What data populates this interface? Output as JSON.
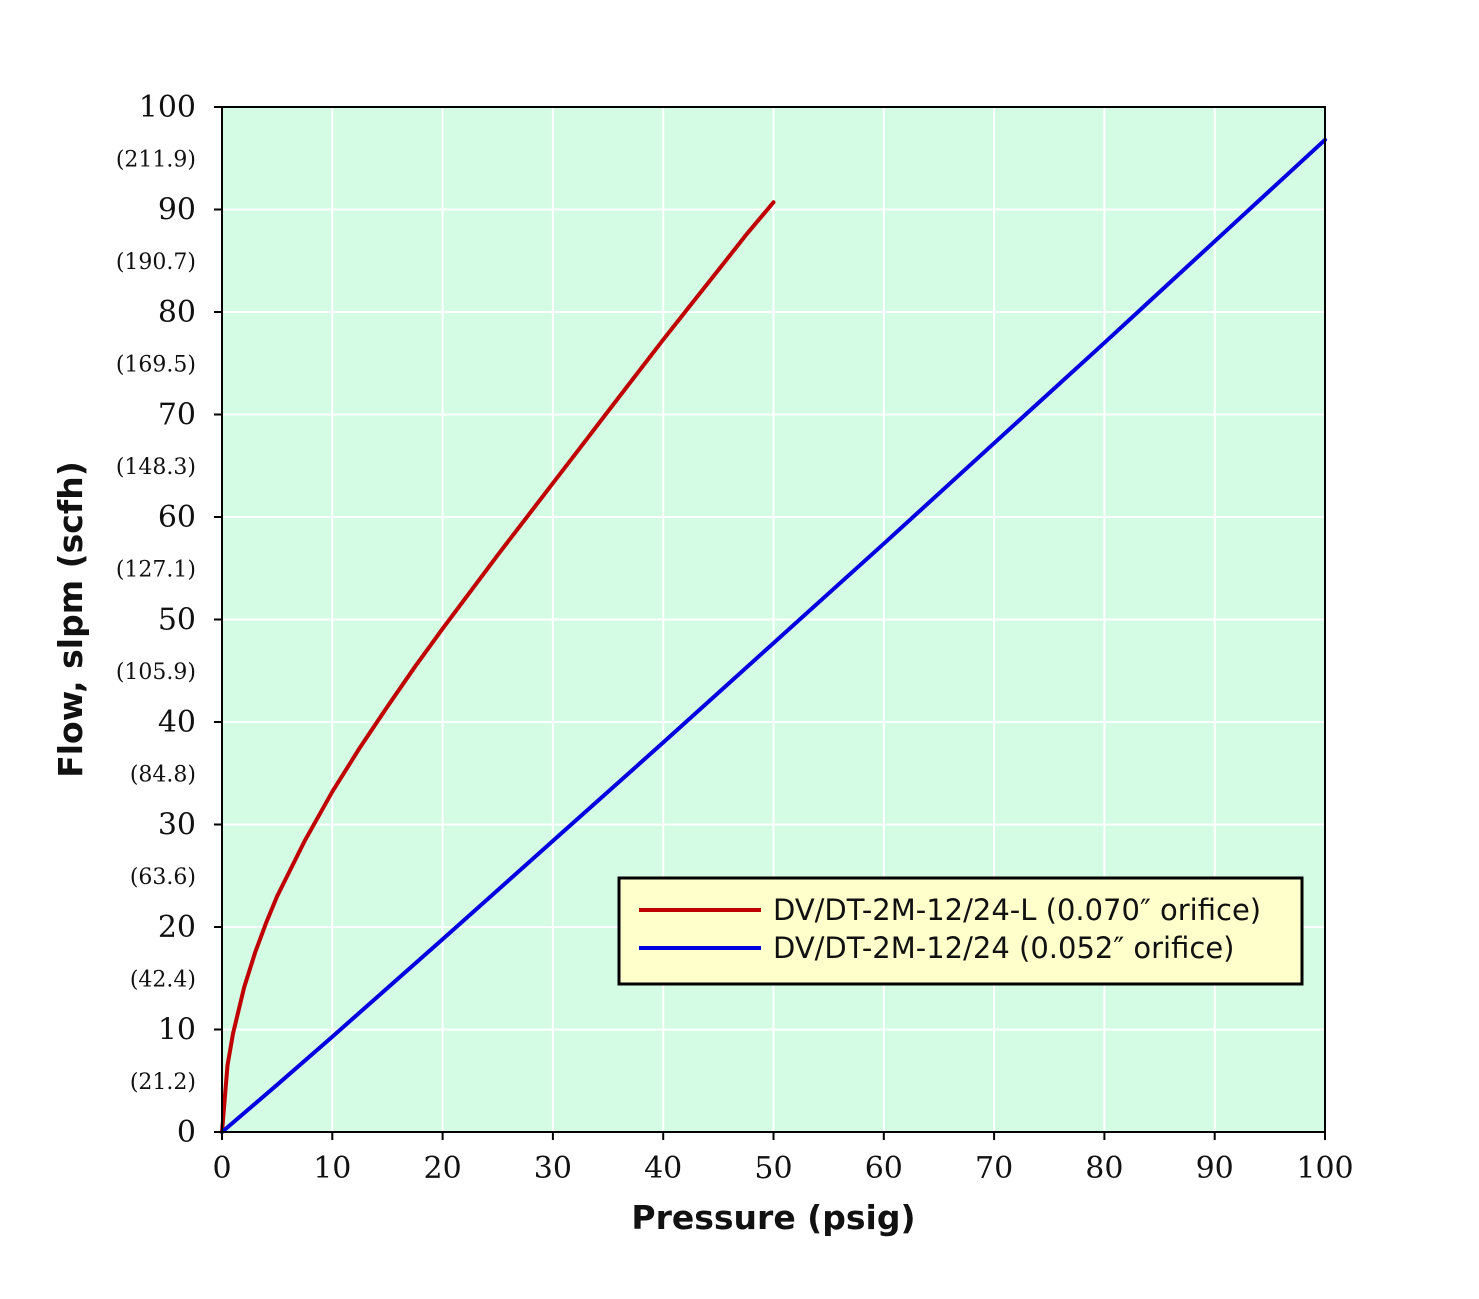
{
  "chart_data": {
    "type": "line",
    "xlabel": "Pressure (psig)",
    "ylabel": "Flow, slpm (scfh)",
    "xlim": [
      0,
      100
    ],
    "ylim": [
      0,
      100
    ],
    "x_ticks": [
      "0",
      "10",
      "20",
      "30",
      "40",
      "50",
      "60",
      "70",
      "80",
      "90",
      "100"
    ],
    "y_ticks": [
      "0",
      "10",
      "20",
      "30",
      "40",
      "50",
      "60",
      "70",
      "80",
      "90",
      "100"
    ],
    "y_secondary_ticks": [
      {
        "at": 5,
        "label": "(21.2)"
      },
      {
        "at": 15,
        "label": "(42.4)"
      },
      {
        "at": 25,
        "label": "(63.6)"
      },
      {
        "at": 35,
        "label": "(84.8)"
      },
      {
        "at": 45,
        "label": "(105.9)"
      },
      {
        "at": 55,
        "label": "(127.1)"
      },
      {
        "at": 65,
        "label": "(148.3)"
      },
      {
        "at": 75,
        "label": "(169.5)"
      },
      {
        "at": 85,
        "label": "(190.7)"
      },
      {
        "at": 95,
        "label": "(211.9)"
      }
    ],
    "grid": true,
    "legend_position": "lower-right",
    "colors": {
      "plot_background": "#d4fbe3",
      "grid": "#ffffff",
      "legend_background": "#ffffcc"
    },
    "series": [
      {
        "name": "DV/DT-2M-12/24-L (0.070″ orifice)",
        "color": "#c00000",
        "x": [
          0,
          0.5,
          1,
          2,
          3,
          4,
          5,
          7.5,
          10,
          12.5,
          15,
          17.5,
          20,
          22.5,
          25,
          27.5,
          30,
          32.5,
          35,
          37.5,
          40,
          42.5,
          45,
          47.5,
          50
        ],
        "y": [
          0,
          6.5,
          9.6,
          14.1,
          17.5,
          20.4,
          23.0,
          28.4,
          33.2,
          37.5,
          41.5,
          45.4,
          49.1,
          52.7,
          56.3,
          59.8,
          63.3,
          66.8,
          70.3,
          73.8,
          77.3,
          80.7,
          84.1,
          87.5,
          90.7
        ]
      },
      {
        "name": "DV/DT-2M-12/24 (0.052″ orifice)",
        "color": "#0000e0",
        "x": [
          0,
          5,
          10,
          20,
          30,
          40,
          50,
          60,
          70,
          80,
          90,
          100
        ],
        "y": [
          0,
          4.6,
          9.3,
          18.8,
          28.4,
          38.0,
          47.7,
          57.4,
          67.2,
          77.0,
          86.9,
          96.8
        ]
      }
    ]
  }
}
